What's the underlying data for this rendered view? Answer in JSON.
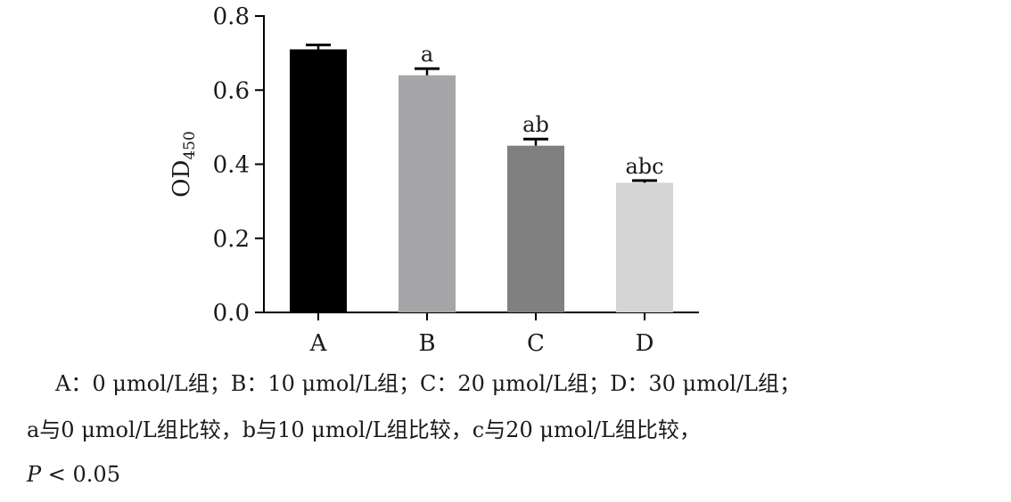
{
  "chart_data": {
    "type": "bar",
    "categories": [
      "A",
      "B",
      "C",
      "D"
    ],
    "values": [
      0.71,
      0.64,
      0.45,
      0.35
    ],
    "errors": [
      0.012,
      0.018,
      0.018,
      0.006
    ],
    "significance_labels": [
      "",
      "a",
      "ab",
      "abc"
    ],
    "colors": [
      "#000000",
      "#a6a6a8",
      "#808080",
      "#d4d4d4"
    ],
    "ylabel": "OD",
    "ylabel_subscript": "450",
    "xlabel": "",
    "title": "",
    "ylim": [
      0,
      0.8
    ],
    "yticks": [
      "0.0",
      "0.2",
      "0.4",
      "0.6",
      "0.8"
    ],
    "grid": false,
    "legend": "none"
  },
  "caption": {
    "line1": "A：0 μmol/L组；B：10 μmol/L组；C：20 μmol/L组；D：30 μmol/L组；",
    "line2": "a与0 μmol/L组比较，b与10 μmol/L组比较，c与20 μmol/L组比较，",
    "line3_p": "P",
    "line3_rest": " < 0.05"
  }
}
